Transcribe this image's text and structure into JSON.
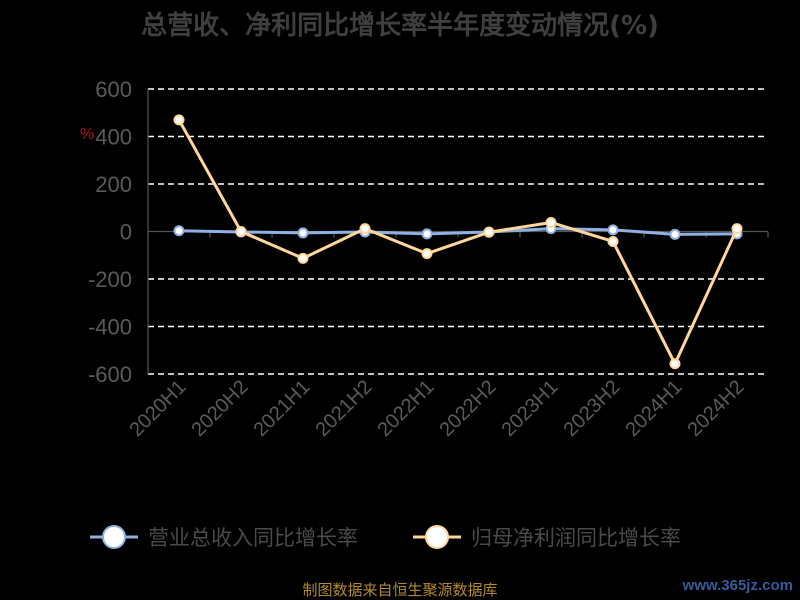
{
  "chart_data": {
    "type": "line",
    "title": "总营收、净利同比增长率半年度变动情况(%)",
    "ylabel": "%",
    "xlabel": "",
    "categories": [
      "2020H1",
      "2020H2",
      "2021H1",
      "2021H2",
      "2022H1",
      "2022H2",
      "2023H1",
      "2023H2",
      "2024H1",
      "2024H2"
    ],
    "ylim": [
      -600,
      600
    ],
    "yticks": [
      600,
      400,
      200,
      0,
      -200,
      -400,
      -600
    ],
    "grid": true,
    "legend_position": "bottom",
    "series": [
      {
        "name": "营业总收入同比增长率",
        "color": "#8fb0e0",
        "values": [
          3,
          -2,
          -6,
          -2,
          -10,
          -2,
          12,
          7,
          -12,
          -10
        ]
      },
      {
        "name": "归母净利润同比增长率",
        "color": "#ffd79a",
        "values": [
          470,
          0,
          -113,
          12,
          -93,
          -3,
          38,
          -42,
          -557,
          12
        ]
      }
    ]
  },
  "footer": {
    "source": "制图数据来自恒生聚源数据库",
    "watermark": "www.365jz.com"
  }
}
